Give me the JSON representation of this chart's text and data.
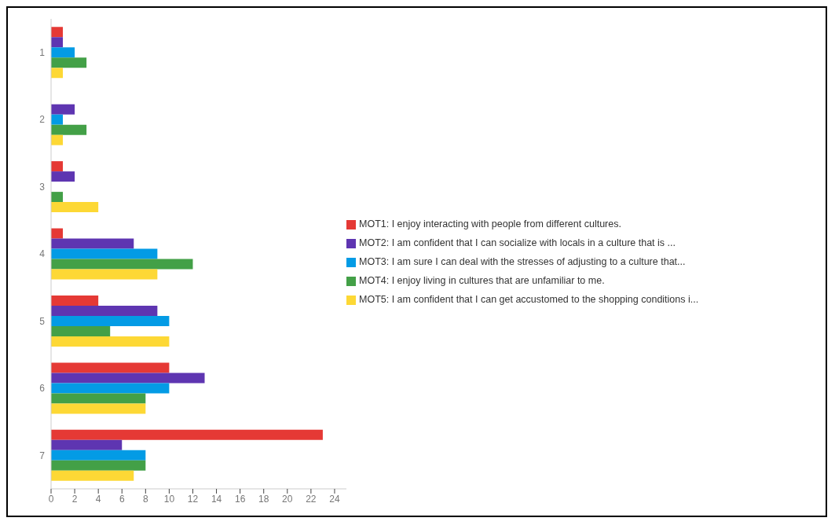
{
  "chart_data": {
    "type": "bar",
    "orientation": "horizontal",
    "categories": [
      "1",
      "2",
      "3",
      "4",
      "5",
      "6",
      "7"
    ],
    "series": [
      {
        "name": "MOT1: I enjoy interacting with people from different cultures.",
        "color": "#e53935",
        "values": [
          1,
          0,
          1,
          1,
          4,
          10,
          23
        ]
      },
      {
        "name": "MOT2: I am confident that I can socialize with locals in a culture that is ...",
        "color": "#5e35b1",
        "values": [
          1,
          2,
          2,
          7,
          9,
          13,
          6
        ]
      },
      {
        "name": "MOT3: I am sure I can deal with the stresses of adjusting to a culture that...",
        "color": "#039be5",
        "values": [
          2,
          1,
          0,
          9,
          10,
          10,
          8
        ]
      },
      {
        "name": "MOT4: I enjoy living in cultures that are unfamiliar to me.",
        "color": "#43a047",
        "values": [
          3,
          3,
          1,
          12,
          5,
          8,
          8
        ]
      },
      {
        "name": "MOT5: I am confident that I can get accustomed to the shopping conditions i...",
        "color": "#fdd835",
        "values": [
          1,
          1,
          4,
          9,
          10,
          8,
          7
        ]
      }
    ],
    "xlim": [
      0,
      25
    ],
    "xticks": [
      0,
      2,
      4,
      6,
      8,
      10,
      12,
      14,
      16,
      18,
      20,
      22,
      24
    ],
    "grid": false,
    "legend": "right"
  }
}
